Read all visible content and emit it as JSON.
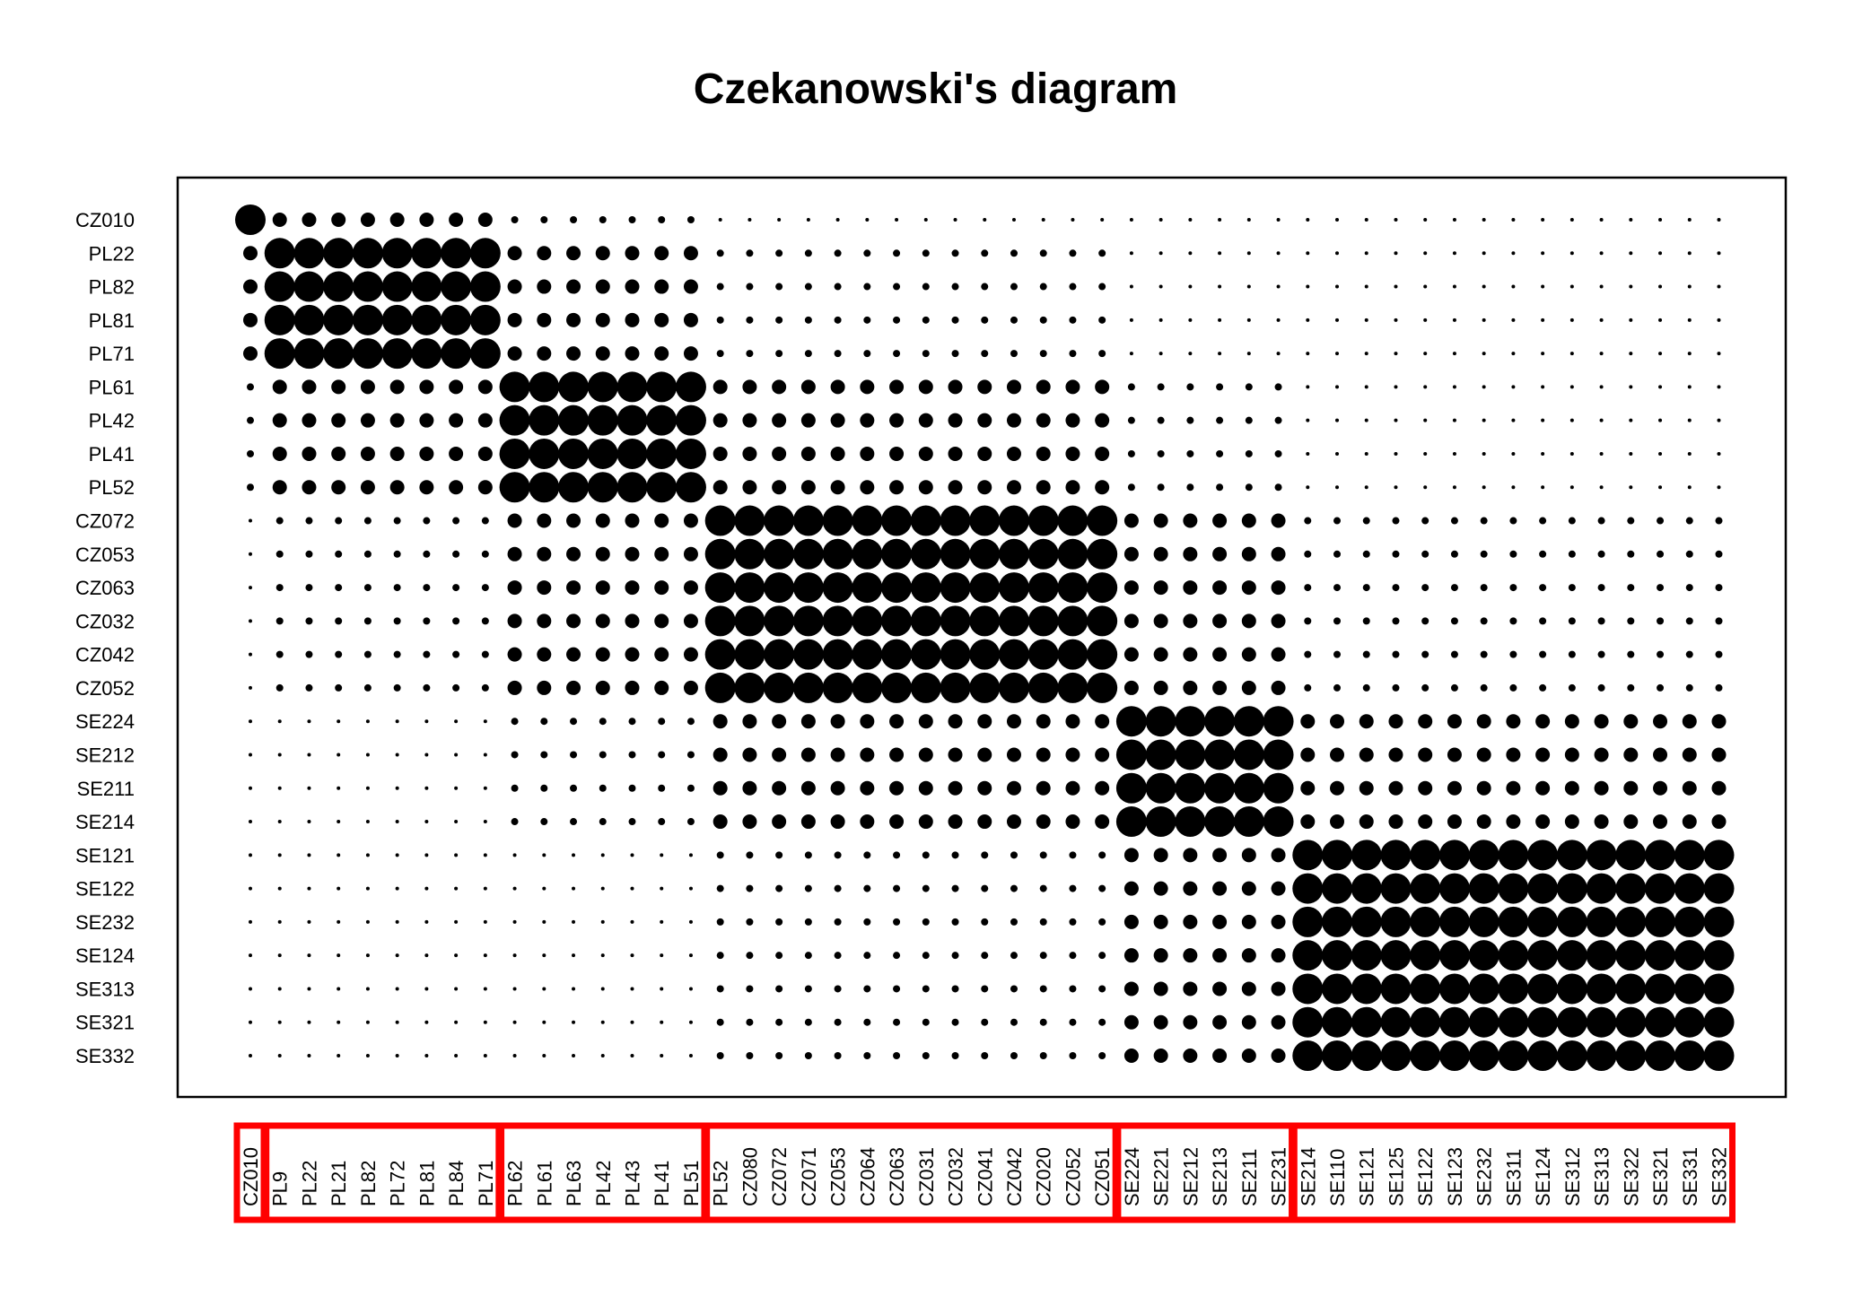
{
  "chart_data": {
    "type": "dot matrix",
    "title": "Czekanowski's diagram",
    "row_labels": [
      "CZ010",
      "PL22",
      "PL82",
      "PL81",
      "PL71",
      "PL61",
      "PL42",
      "PL41",
      "PL52",
      "CZ072",
      "CZ053",
      "CZ063",
      "CZ032",
      "CZ042",
      "CZ052",
      "SE224",
      "SE212",
      "SE211",
      "SE214",
      "SE121",
      "SE122",
      "SE232",
      "SE124",
      "SE313",
      "SE321",
      "SE332"
    ],
    "column_labels": [
      "CZ010",
      "PL9",
      "PL22",
      "PL21",
      "PL82",
      "PL72",
      "PL81",
      "PL84",
      "PL71",
      "PL62",
      "PL61",
      "PL63",
      "PL42",
      "PL43",
      "PL41",
      "PL51",
      "PL52",
      "CZ080",
      "CZ072",
      "CZ071",
      "CZ053",
      "CZ064",
      "CZ063",
      "CZ031",
      "CZ032",
      "CZ041",
      "CZ042",
      "CZ020",
      "CZ052",
      "CZ051",
      "SE224",
      "SE221",
      "SE212",
      "SE213",
      "SE211",
      "SE231",
      "SE214",
      "SE110",
      "SE121",
      "SE125",
      "SE122",
      "SE123",
      "SE232",
      "SE311",
      "SE124",
      "SE312",
      "SE313",
      "SE322",
      "SE321",
      "SE331",
      "SE332"
    ],
    "column_groups": [
      [
        0,
        0
      ],
      [
        1,
        8
      ],
      [
        9,
        15
      ],
      [
        16,
        29
      ],
      [
        30,
        35
      ],
      [
        36,
        50
      ]
    ],
    "legend": "none",
    "grid": false,
    "group_box_color": "#ff0000",
    "dot_color": "#000000"
  }
}
